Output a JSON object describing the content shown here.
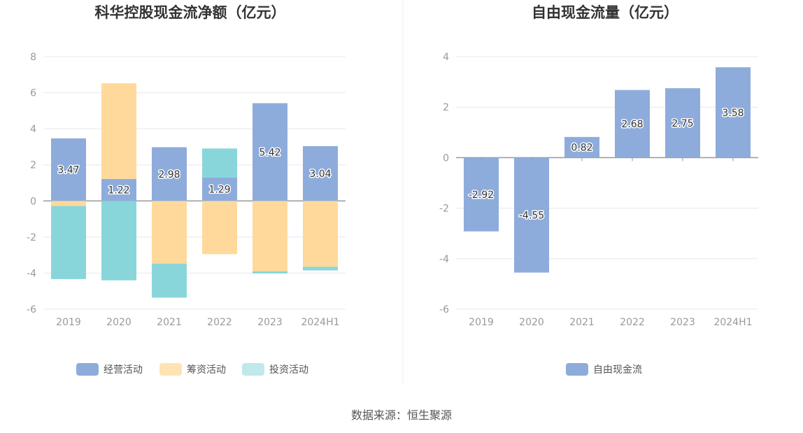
{
  "chart_data": [
    {
      "type": "bar",
      "stacked": true,
      "title": "科华控股现金流净额（亿元）",
      "categories": [
        "2019",
        "2020",
        "2021",
        "2022",
        "2023",
        "2024H1"
      ],
      "series": [
        {
          "name": "经营活动",
          "color": "#8eacdb",
          "values": [
            3.47,
            1.22,
            2.98,
            1.29,
            5.42,
            3.04
          ],
          "labels": [
            "3.47",
            "1.22",
            "2.98",
            "1.29",
            "5.42",
            "3.04"
          ]
        },
        {
          "name": "筹资活动",
          "color": "#ffd99b",
          "values": [
            -0.28,
            5.3,
            -3.48,
            -2.95,
            -3.9,
            -3.65
          ]
        },
        {
          "name": "投资活动",
          "color": "#89d6da",
          "values": [
            -4.05,
            -4.4,
            -1.88,
            1.62,
            -0.12,
            -0.2
          ]
        }
      ],
      "legend_colors": [
        "#8eacdb",
        "#ffe3b3",
        "#bfe9eb"
      ],
      "ylim": [
        -6,
        8
      ],
      "yticks": [
        "8",
        "6",
        "4",
        "2",
        "0",
        "-2",
        "-4",
        "-6"
      ],
      "legend": "bottom"
    },
    {
      "type": "bar",
      "title": "自由现金流量（亿元）",
      "categories": [
        "2019",
        "2020",
        "2021",
        "2022",
        "2023",
        "2024H1"
      ],
      "series": [
        {
          "name": "自由现金流",
          "color": "#8eacdb",
          "values": [
            -2.92,
            -4.55,
            0.82,
            2.68,
            2.75,
            3.58
          ],
          "labels": [
            "-2.92",
            "-4.55",
            "0.82",
            "2.68",
            "2.75",
            "3.58"
          ]
        }
      ],
      "legend_colors": [
        "#8eacdb"
      ],
      "ylim": [
        -6,
        4
      ],
      "yticks": [
        "4",
        "2",
        "0",
        "-2",
        "-4",
        "-6"
      ],
      "legend": "bottom"
    }
  ],
  "footer": {
    "source": "数据来源：恒生聚源"
  }
}
